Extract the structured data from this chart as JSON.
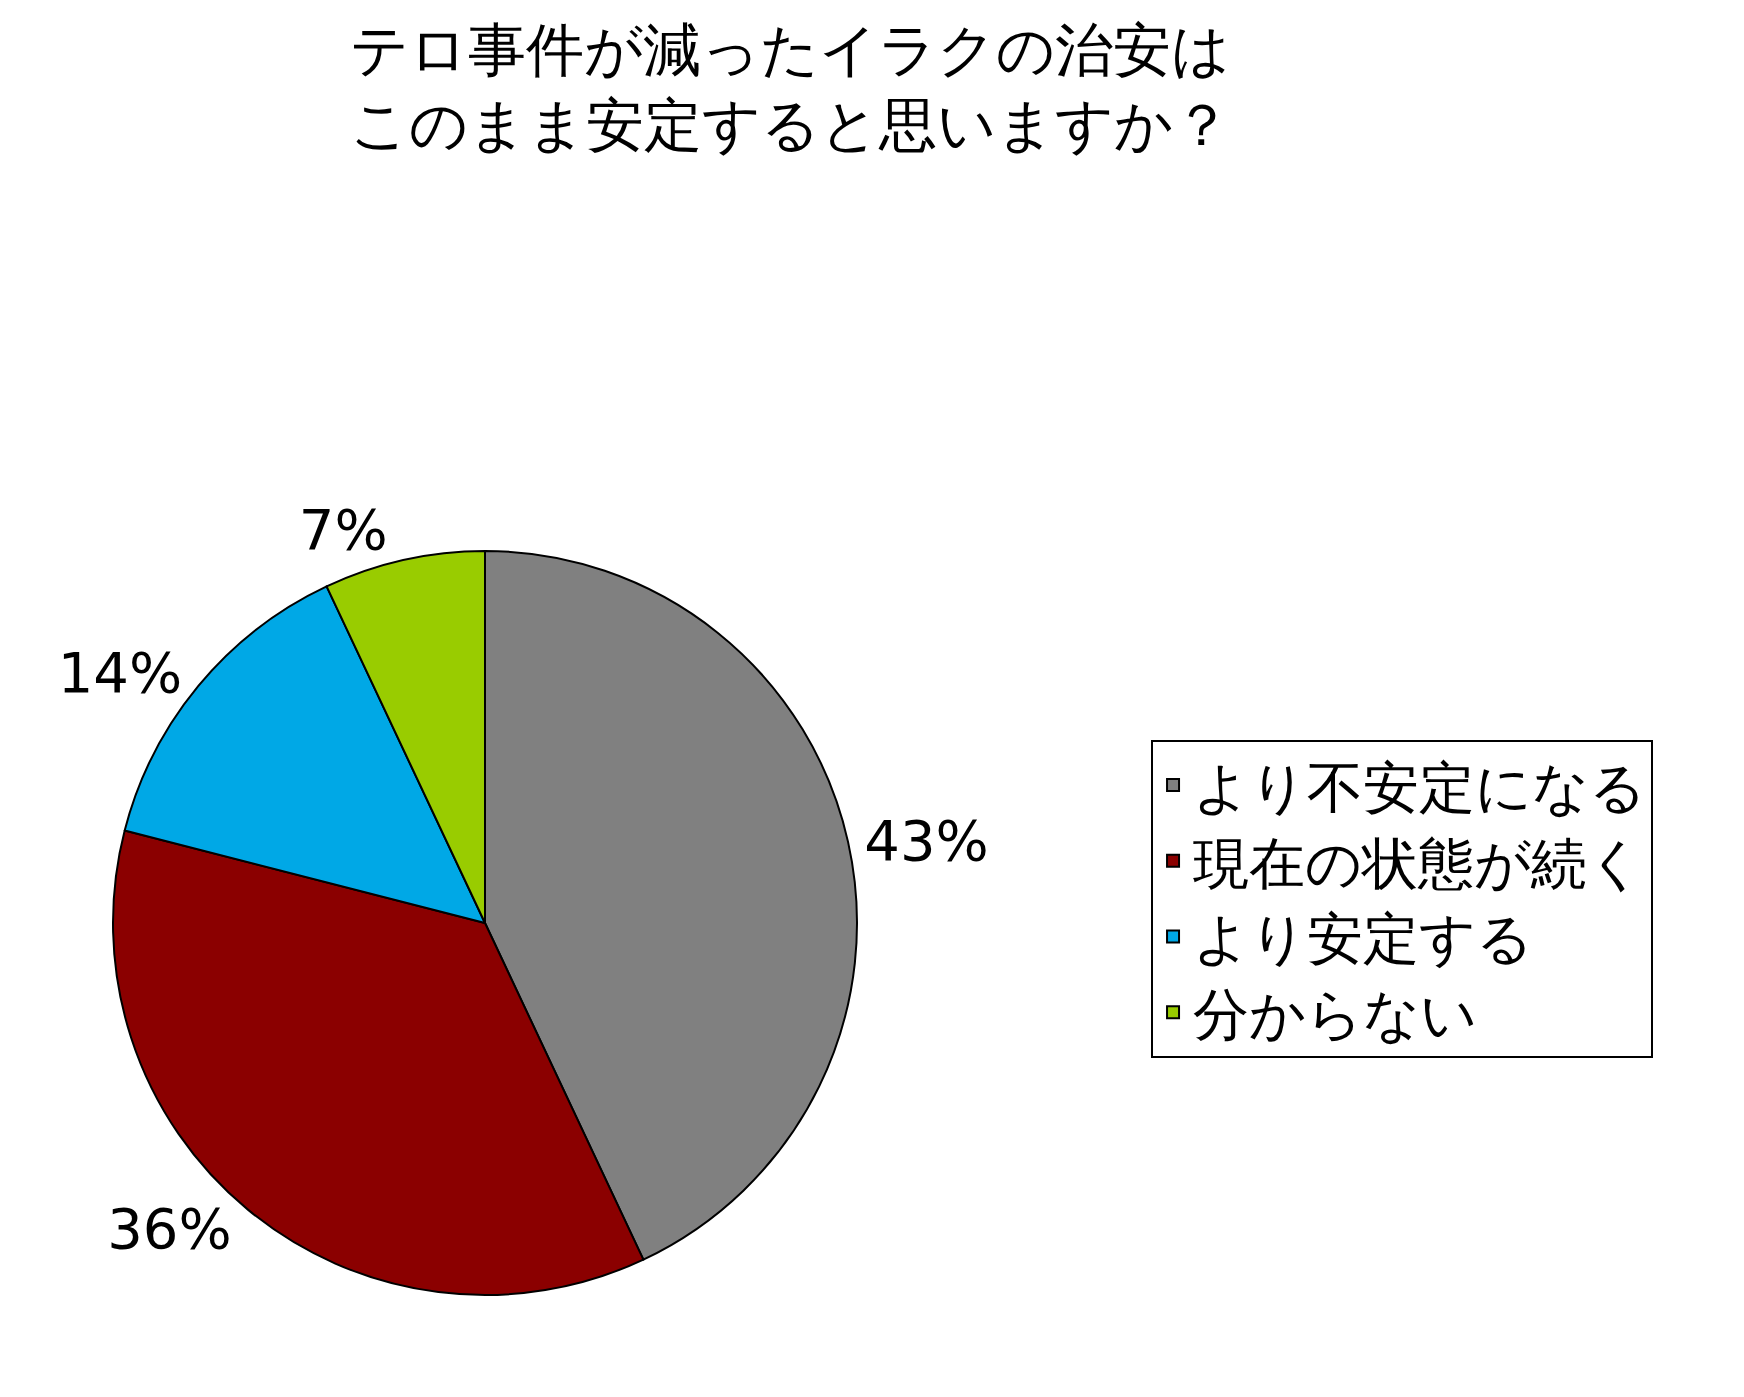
{
  "chart_data": {
    "type": "pie",
    "title": "テロ事件が減ったイラクの治安はこのまま安定すると思いますか？",
    "categories": [
      "より不安定になる",
      "現在の状態が続く",
      "より安定する",
      "分からない"
    ],
    "values": [
      43,
      36,
      14,
      7
    ],
    "value_labels": [
      "43%",
      "36%",
      "14%",
      "7%"
    ],
    "colors": [
      "#808080",
      "#8b0000",
      "#00a8e6",
      "#99cc00"
    ],
    "legend": "right"
  }
}
